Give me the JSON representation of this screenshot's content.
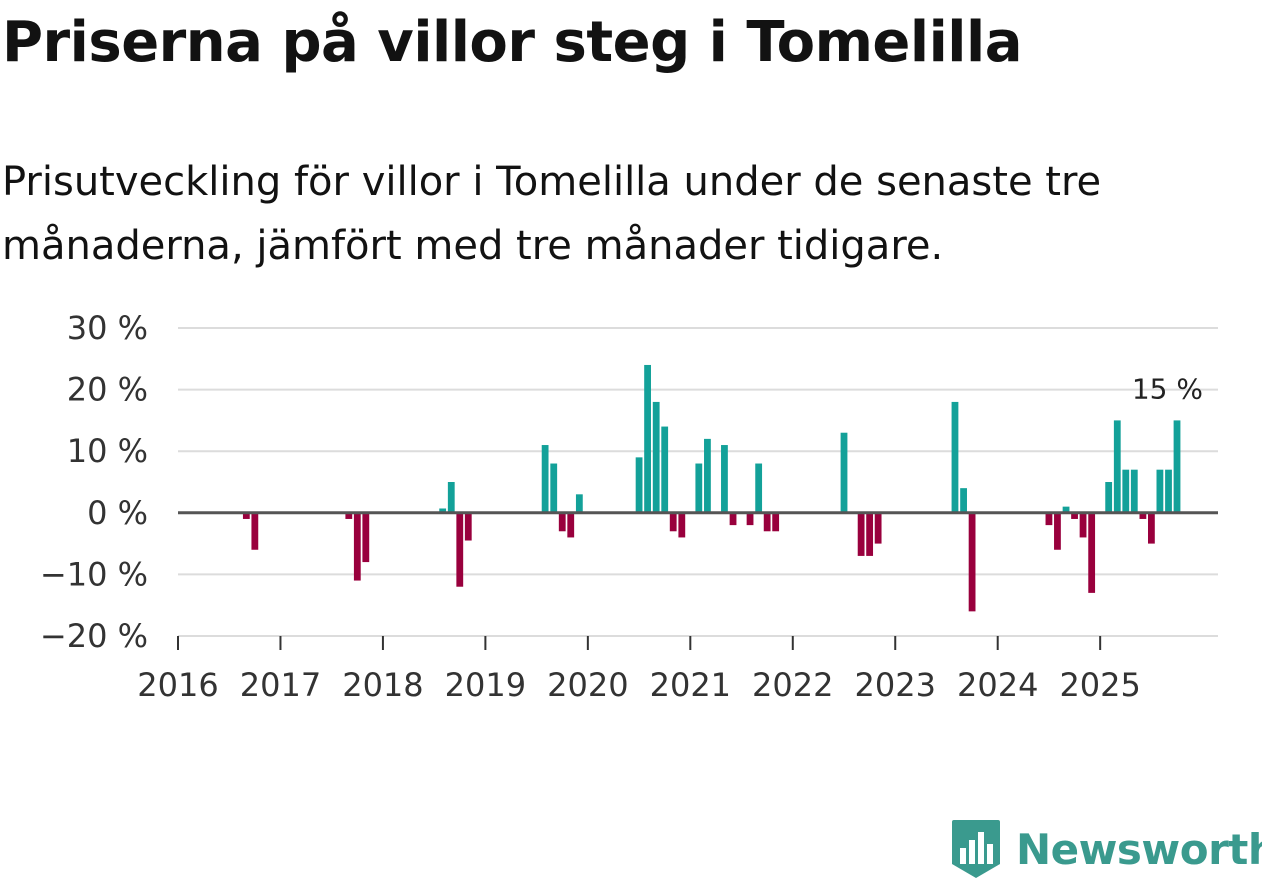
{
  "title": "Priserna på villor steg i Tomelilla",
  "subtitle": "Prisutveckling för villor i Tomelilla under de senaste tre månaderna, jämfört med tre månader tidigare.",
  "brand": {
    "name": "Newsworthy"
  },
  "colors": {
    "positive": "#13a199",
    "negative": "#99003d",
    "grid": "#dcdcdc",
    "zero": "#555555",
    "brand": "#3a9a8e"
  },
  "chart_data": {
    "type": "bar",
    "title": "Priserna på villor steg i Tomelilla",
    "xlabel": "",
    "ylabel": "",
    "ylim": [
      -20,
      30
    ],
    "yticks": [
      30,
      20,
      10,
      0,
      -10,
      -20
    ],
    "ytick_labels": [
      "30 %",
      "20 %",
      "10 %",
      "0 %",
      "−10 %",
      "−20 %"
    ],
    "xlim": [
      2016,
      2026.15
    ],
    "xticks": [
      2016,
      2017,
      2018,
      2019,
      2020,
      2021,
      2022,
      2023,
      2024,
      2025
    ],
    "xtick_labels": [
      "2016",
      "2017",
      "2018",
      "2019",
      "2020",
      "2021",
      "2022",
      "2023",
      "2024",
      "2025"
    ],
    "annotation": {
      "label": "15 %",
      "x": 2025.75,
      "y": 15
    },
    "series": [
      {
        "name": "Prisutveckling",
        "points": [
          {
            "x": 2016.667,
            "y": -1
          },
          {
            "x": 2016.75,
            "y": -6
          },
          {
            "x": 2017.667,
            "y": -1
          },
          {
            "x": 2017.75,
            "y": -11
          },
          {
            "x": 2017.833,
            "y": -8
          },
          {
            "x": 2018.583,
            "y": 0.7
          },
          {
            "x": 2018.667,
            "y": 5
          },
          {
            "x": 2018.75,
            "y": -12
          },
          {
            "x": 2018.833,
            "y": -4.5
          },
          {
            "x": 2019.583,
            "y": 11
          },
          {
            "x": 2019.667,
            "y": 8
          },
          {
            "x": 2019.75,
            "y": -3
          },
          {
            "x": 2019.833,
            "y": -4
          },
          {
            "x": 2019.917,
            "y": 3
          },
          {
            "x": 2020.5,
            "y": 9
          },
          {
            "x": 2020.583,
            "y": 24
          },
          {
            "x": 2020.667,
            "y": 18
          },
          {
            "x": 2020.75,
            "y": 14
          },
          {
            "x": 2020.833,
            "y": -3
          },
          {
            "x": 2020.917,
            "y": -4
          },
          {
            "x": 2021.083,
            "y": 8
          },
          {
            "x": 2021.167,
            "y": 12
          },
          {
            "x": 2021.333,
            "y": 11
          },
          {
            "x": 2021.417,
            "y": -2
          },
          {
            "x": 2021.583,
            "y": -2
          },
          {
            "x": 2021.667,
            "y": 8
          },
          {
            "x": 2021.75,
            "y": -3
          },
          {
            "x": 2021.833,
            "y": -3
          },
          {
            "x": 2022.5,
            "y": 13
          },
          {
            "x": 2022.667,
            "y": -7
          },
          {
            "x": 2022.75,
            "y": -7
          },
          {
            "x": 2022.833,
            "y": -5
          },
          {
            "x": 2023.583,
            "y": 18
          },
          {
            "x": 2023.667,
            "y": 4
          },
          {
            "x": 2023.75,
            "y": -16
          },
          {
            "x": 2024.5,
            "y": -2
          },
          {
            "x": 2024.583,
            "y": -6
          },
          {
            "x": 2024.667,
            "y": 1
          },
          {
            "x": 2024.75,
            "y": -1
          },
          {
            "x": 2024.833,
            "y": -4
          },
          {
            "x": 2024.917,
            "y": -13
          },
          {
            "x": 2025.083,
            "y": 5
          },
          {
            "x": 2025.167,
            "y": 15
          },
          {
            "x": 2025.25,
            "y": 7
          },
          {
            "x": 2025.333,
            "y": 7
          },
          {
            "x": 2025.417,
            "y": -1
          },
          {
            "x": 2025.5,
            "y": -5
          },
          {
            "x": 2025.583,
            "y": 7
          },
          {
            "x": 2025.667,
            "y": 7
          },
          {
            "x": 2025.75,
            "y": 15
          }
        ]
      }
    ]
  }
}
